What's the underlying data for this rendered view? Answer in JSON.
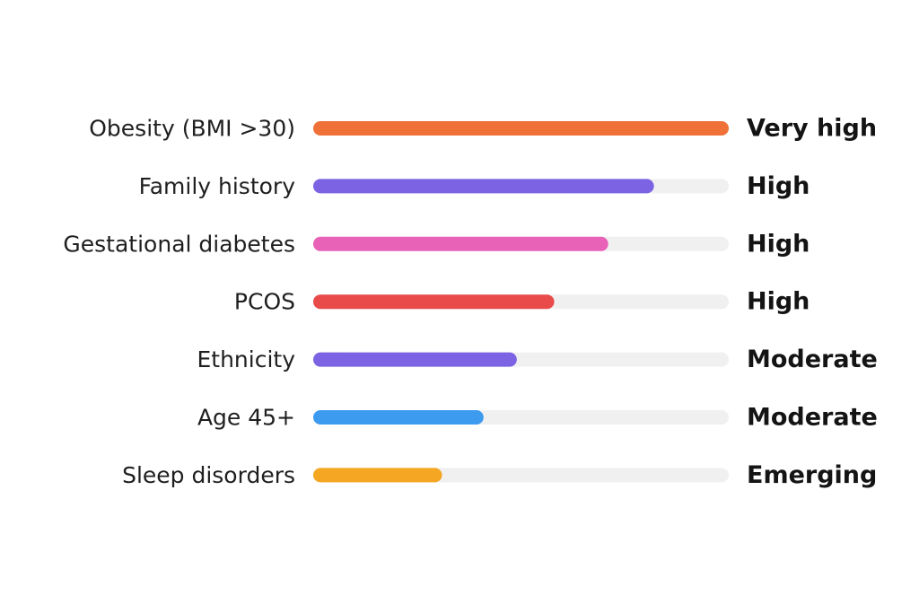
{
  "chart_data": {
    "type": "bar",
    "orientation": "horizontal",
    "categories": [
      "Obesity (BMI >30)",
      "Family history",
      "Gestational diabetes",
      "PCOS",
      "Ethnicity",
      "Age 45+",
      "Sleep disorders"
    ],
    "values": [
      1.0,
      0.82,
      0.71,
      0.58,
      0.49,
      0.41,
      0.31
    ],
    "value_labels": [
      "Very high",
      "High",
      "High",
      "High",
      "Moderate",
      "Moderate",
      "Emerging"
    ],
    "colors": [
      "#F07138",
      "#7B63E3",
      "#E862B8",
      "#E94B4B",
      "#7B63E3",
      "#3D9BEF",
      "#F5A623"
    ],
    "track_color": "#F0F0F0",
    "xlim": [
      0,
      1
    ],
    "title": "",
    "xlabel": "",
    "ylabel": "",
    "grid": false,
    "legend": "none"
  }
}
